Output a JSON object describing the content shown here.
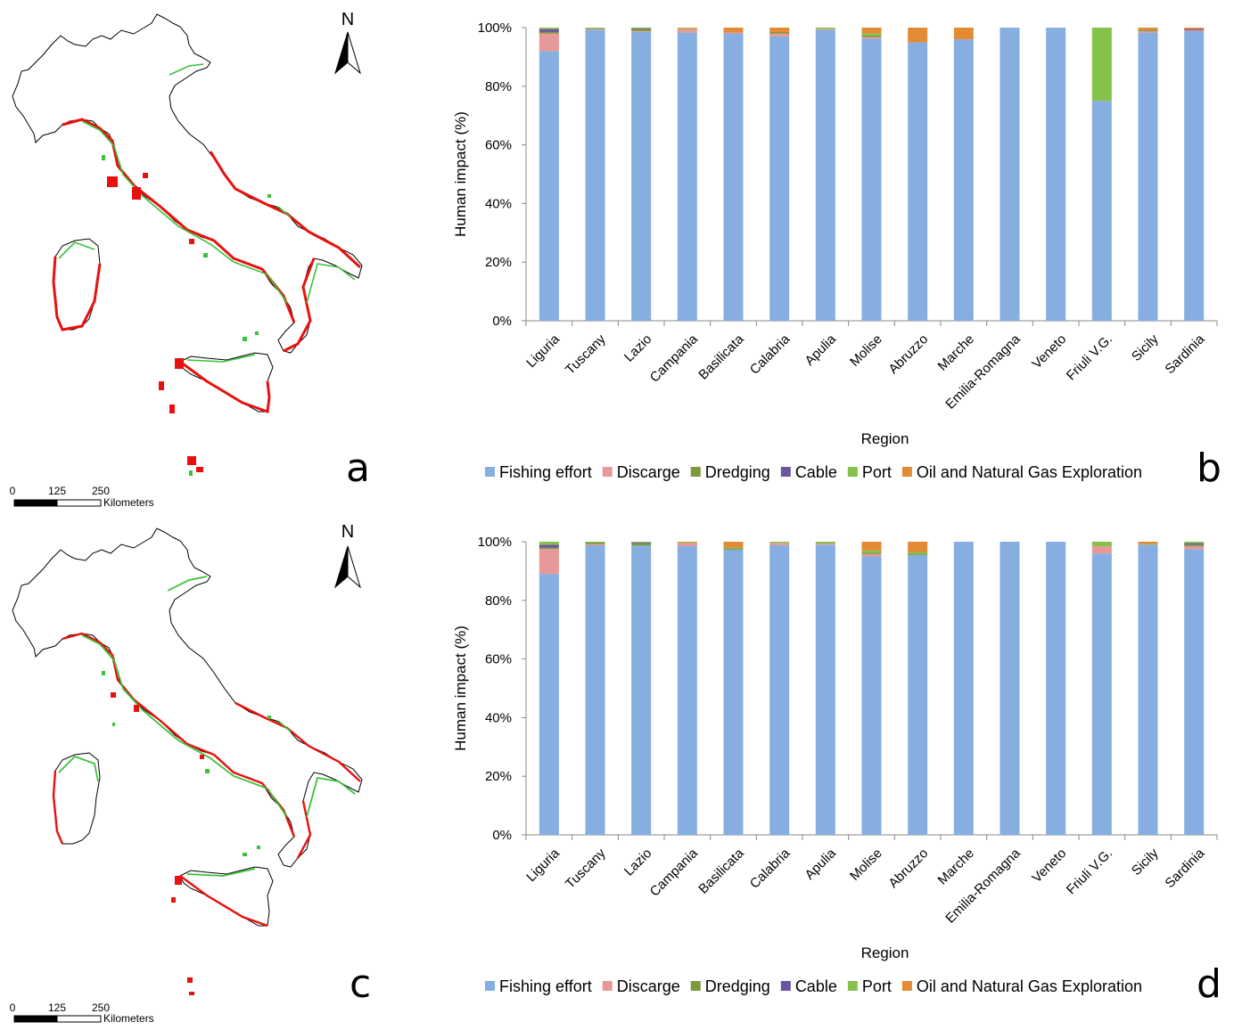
{
  "maps": [
    {
      "id": "a",
      "panel_letter": "a",
      "north_label": "N",
      "scale": {
        "ticks": [
          "0",
          "125",
          "250"
        ],
        "unit": "Kilometers"
      }
    },
    {
      "id": "c",
      "panel_letter": "c",
      "north_label": "N",
      "scale": {
        "ticks": [
          "0",
          "125",
          "250"
        ],
        "unit": "Kilometers"
      }
    }
  ],
  "colors": {
    "Fishing effort": "#86aee0",
    "Discarge": "#e89896",
    "Dredging": "#7a9a3c",
    "Cable": "#6c55a0",
    "Port": "#84c24a",
    "Oil and Natural Gas Exploration": "#e38a34",
    "map_outline": "#000000",
    "map_red": "#e8110f",
    "map_green": "#39c23a"
  },
  "chart_data": [
    {
      "type": "bar",
      "stacked": "percent",
      "panel_letter": "b",
      "xlabel": "Region",
      "ylabel": "Human impact (%)",
      "ylim": [
        0,
        100
      ],
      "yticks": [
        "0%",
        "20%",
        "40%",
        "60%",
        "80%",
        "100%"
      ],
      "grid": false,
      "legend_position": "bottom",
      "categories": [
        "Liguria",
        "Tuscany",
        "Lazio",
        "Campania",
        "Basilicata",
        "Calabria",
        "Apulia",
        "Molise",
        "Abruzzo",
        "Marche",
        "Emilia-Romagna",
        "Veneto",
        "Friuli V.G.",
        "Sicily",
        "Sardinia"
      ],
      "series": [
        {
          "name": "Fishing effort",
          "values": [
            92,
            99.3,
            98.5,
            98.3,
            98,
            97,
            99.2,
            96.3,
            95,
            96,
            100,
            100,
            75,
            98.3,
            98.8
          ]
        },
        {
          "name": "Discarge",
          "values": [
            6,
            0.2,
            0.3,
            1.2,
            0.3,
            1,
            0.3,
            0.5,
            0,
            0,
            0,
            0,
            0,
            0.5,
            0.3
          ]
        },
        {
          "name": "Dredging",
          "values": [
            0.5,
            0.3,
            0.7,
            0,
            0,
            0.5,
            0,
            0.5,
            0,
            0,
            0,
            0,
            0,
            0.4,
            0
          ]
        },
        {
          "name": "Cable",
          "values": [
            1,
            0,
            0.3,
            0,
            0,
            0,
            0,
            0,
            0,
            0,
            0,
            0,
            0,
            0,
            0.4
          ]
        },
        {
          "name": "Port",
          "values": [
            0.5,
            0.2,
            0.2,
            0.3,
            0,
            0,
            0.5,
            0.7,
            0,
            0,
            0,
            0,
            25,
            0,
            0
          ]
        },
        {
          "name": "Oil and Natural Gas Exploration",
          "values": [
            0,
            0,
            0,
            0.2,
            1.7,
            1.5,
            0,
            2,
            5,
            4,
            0,
            0,
            0,
            0.8,
            0.5
          ]
        }
      ]
    },
    {
      "type": "bar",
      "stacked": "percent",
      "panel_letter": "d",
      "xlabel": "Region",
      "ylabel": "Human impact (%)",
      "ylim": [
        0,
        100
      ],
      "yticks": [
        "0%",
        "20%",
        "40%",
        "60%",
        "80%",
        "100%"
      ],
      "grid": false,
      "legend_position": "bottom",
      "categories": [
        "Liguria",
        "Tuscany",
        "Lazio",
        "Campania",
        "Basilicata",
        "Calabria",
        "Apulia",
        "Molise",
        "Abruzzo",
        "Marche",
        "Emilia-Romagna",
        "Veneto",
        "Friuli V.G.",
        "Sicily",
        "Sardinia"
      ],
      "series": [
        {
          "name": "Fishing effort",
          "values": [
            89,
            98.8,
            98.7,
            98.5,
            97.3,
            98.8,
            99,
            95,
            95.5,
            100,
            100,
            100,
            96,
            99,
            97.5
          ]
        },
        {
          "name": "Discarge",
          "values": [
            8.5,
            0.4,
            0,
            1,
            0,
            0.8,
            0.4,
            0.8,
            0,
            0,
            0,
            0,
            2.5,
            0,
            1
          ]
        },
        {
          "name": "Dredging",
          "values": [
            0.5,
            0.5,
            0.8,
            0,
            0.5,
            0,
            0,
            0.5,
            0.5,
            0,
            0,
            0,
            0,
            0,
            0.5
          ]
        },
        {
          "name": "Cable",
          "values": [
            1,
            0,
            0.3,
            0,
            0,
            0,
            0,
            0,
            0,
            0,
            0,
            0,
            0,
            0,
            0.5
          ]
        },
        {
          "name": "Port",
          "values": [
            1,
            0.3,
            0.2,
            0.2,
            0.2,
            0.4,
            0.6,
            0.7,
            0.5,
            0,
            0,
            0,
            1.5,
            0.2,
            0.5
          ]
        },
        {
          "name": "Oil and Natural Gas Exploration",
          "values": [
            0,
            0,
            0,
            0.3,
            2,
            0,
            0,
            3,
            3.5,
            0,
            0,
            0,
            0,
            0.8,
            0
          ]
        }
      ]
    }
  ]
}
